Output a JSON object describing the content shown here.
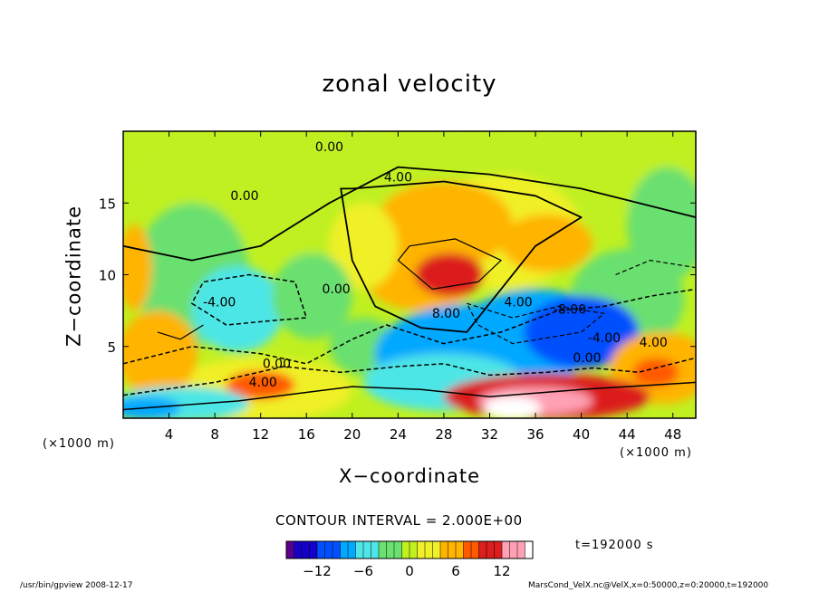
{
  "chart_data": {
    "type": "heatmap",
    "title": "zonal velocity",
    "xlabel": "X−coordinate",
    "ylabel": "Z−coordinate",
    "x_unit_label": "(×1000 m)",
    "y_unit_label": "(×1000 m)",
    "xlim": [
      0,
      50
    ],
    "ylim": [
      0,
      20
    ],
    "x_ticks": [
      4,
      8,
      12,
      16,
      20,
      24,
      28,
      32,
      36,
      40,
      44,
      48
    ],
    "y_ticks": [
      5,
      10,
      15
    ],
    "colorbar": {
      "range": [
        -16,
        16
      ],
      "ticks": [
        -12,
        -6,
        0,
        6,
        12
      ],
      "colors": [
        "#5a0090",
        "#1400c8",
        "#0050ff",
        "#00a8ff",
        "#4ee6e6",
        "#6ae070",
        "#c0f020",
        "#f0f028",
        "#ffb400",
        "#ff5a00",
        "#dc1e1e",
        "#ffa0b4",
        "#ffffff"
      ]
    },
    "contour_labels": [
      {
        "text": "0.00",
        "x": 18.0,
        "z": 18.6
      },
      {
        "text": "0.00",
        "x": 10.6,
        "z": 15.2
      },
      {
        "text": "4.00",
        "x": 24.0,
        "z": 16.5
      },
      {
        "text": "-4.00",
        "x": 8.4,
        "z": 7.8
      },
      {
        "text": "0.00",
        "x": 18.6,
        "z": 8.7
      },
      {
        "text": "0.00",
        "x": 13.4,
        "z": 3.5
      },
      {
        "text": "4.00",
        "x": 12.2,
        "z": 2.2
      },
      {
        "text": "8.00",
        "x": 28.2,
        "z": 7.0
      },
      {
        "text": "4.00",
        "x": 34.5,
        "z": 7.8
      },
      {
        "text": "-8.00",
        "x": 39.0,
        "z": 7.3
      },
      {
        "text": "-4.00",
        "x": 42.0,
        "z": 5.3
      },
      {
        "text": "0.00",
        "x": 40.5,
        "z": 3.9
      },
      {
        "text": "4.00",
        "x": 46.3,
        "z": 5.0
      }
    ],
    "annotations": {
      "contour_interval": "CONTOUR INTERVAL = 2.000E+00",
      "time": "t=192000 s"
    }
  },
  "footer": {
    "left": "/usr/bin/gpview  2008-12-17",
    "right": "MarsCond_VelX.nc@VelX,x=0:50000,z=0:20000,t=192000"
  }
}
